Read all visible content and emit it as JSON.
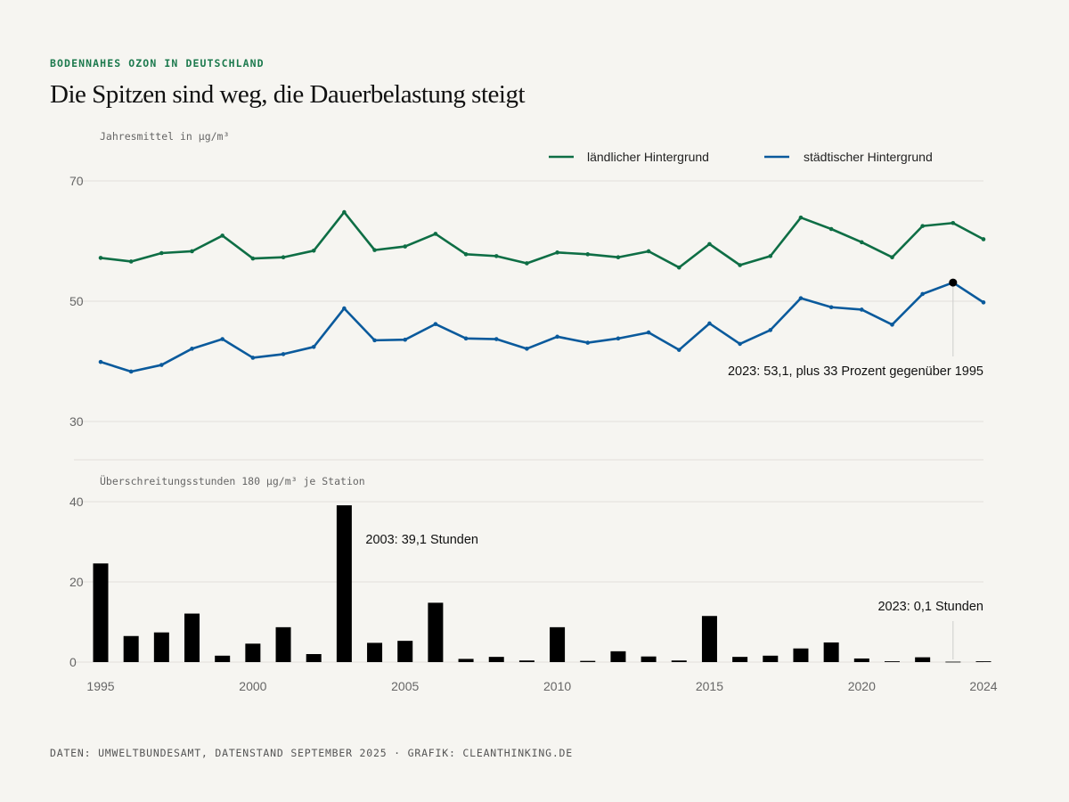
{
  "header": {
    "kicker": "BODENNAHES OZON IN DEUTSCHLAND",
    "title": "Die Spitzen sind weg, die Dauerbelastung steigt"
  },
  "footer": {
    "source": "DATEN: UMWELTBUNDESAMT, DATENSTAND SEPTEMBER 2025 · GRAFIK: CLEANTHINKING.DE"
  },
  "colors": {
    "rural": "#0e6e45",
    "urban": "#0a5a9c",
    "bars": "#000000",
    "grid": "#e2e0da"
  },
  "chart_data": [
    {
      "type": "line",
      "ylabel": "Jahresmittel in µg/m³",
      "ylim": [
        30,
        70
      ],
      "yticks": [
        30,
        50,
        70
      ],
      "legend_position": "top-right",
      "x": [
        1995,
        1996,
        1997,
        1998,
        1999,
        2000,
        2001,
        2002,
        2003,
        2004,
        2005,
        2006,
        2007,
        2008,
        2009,
        2010,
        2011,
        2012,
        2013,
        2014,
        2015,
        2016,
        2017,
        2018,
        2019,
        2020,
        2021,
        2022,
        2023,
        2024
      ],
      "series": [
        {
          "name": "ländlicher Hintergrund",
          "color_key": "rural",
          "values": [
            57.2,
            56.6,
            58.0,
            58.3,
            60.9,
            57.1,
            57.3,
            58.4,
            64.8,
            58.5,
            59.1,
            61.2,
            57.8,
            57.5,
            56.3,
            58.1,
            57.8,
            57.3,
            58.3,
            55.6,
            59.5,
            56.0,
            57.5,
            63.9,
            62.0,
            59.8,
            57.3,
            62.5,
            63.0,
            60.3
          ]
        },
        {
          "name": "städtischer Hintergrund",
          "color_key": "urban",
          "values": [
            39.9,
            38.3,
            39.4,
            42.1,
            43.7,
            40.6,
            41.2,
            42.4,
            48.8,
            43.5,
            43.6,
            46.2,
            43.8,
            43.7,
            42.1,
            44.1,
            43.1,
            43.8,
            44.8,
            41.9,
            46.3,
            42.9,
            45.2,
            50.5,
            49.0,
            48.6,
            46.1,
            51.2,
            53.1,
            49.8
          ]
        }
      ],
      "annotations": [
        {
          "x": 2023,
          "y": 53.1,
          "series": "städtischer Hintergrund",
          "text": "2023: 53,1, plus 33 Prozent gegenüber 1995"
        }
      ]
    },
    {
      "type": "bar",
      "ylabel": "Überschreitungsstunden 180 µg/m³ je Station",
      "ylim": [
        0,
        40
      ],
      "yticks": [
        0,
        20,
        40
      ],
      "x": [
        1995,
        1996,
        1997,
        1998,
        1999,
        2000,
        2001,
        2002,
        2003,
        2004,
        2005,
        2006,
        2007,
        2008,
        2009,
        2010,
        2011,
        2012,
        2013,
        2014,
        2015,
        2016,
        2017,
        2018,
        2019,
        2020,
        2021,
        2022,
        2023,
        2024
      ],
      "values": [
        24.6,
        6.5,
        7.4,
        12.1,
        1.6,
        4.6,
        8.7,
        2.0,
        39.1,
        4.8,
        5.3,
        14.8,
        0.8,
        1.3,
        0.4,
        8.7,
        0.3,
        2.7,
        1.4,
        0.4,
        11.5,
        1.3,
        1.6,
        3.4,
        4.9,
        0.9,
        0.2,
        1.2,
        0.1,
        0.2
      ],
      "xticks": [
        1995,
        2000,
        2005,
        2010,
        2015,
        2020,
        2024
      ],
      "annotations": [
        {
          "x": 2003,
          "y": 39.1,
          "text": "2003: 39,1 Stunden"
        },
        {
          "x": 2023,
          "y": 0.1,
          "text": "2023: 0,1 Stunden"
        }
      ]
    }
  ]
}
